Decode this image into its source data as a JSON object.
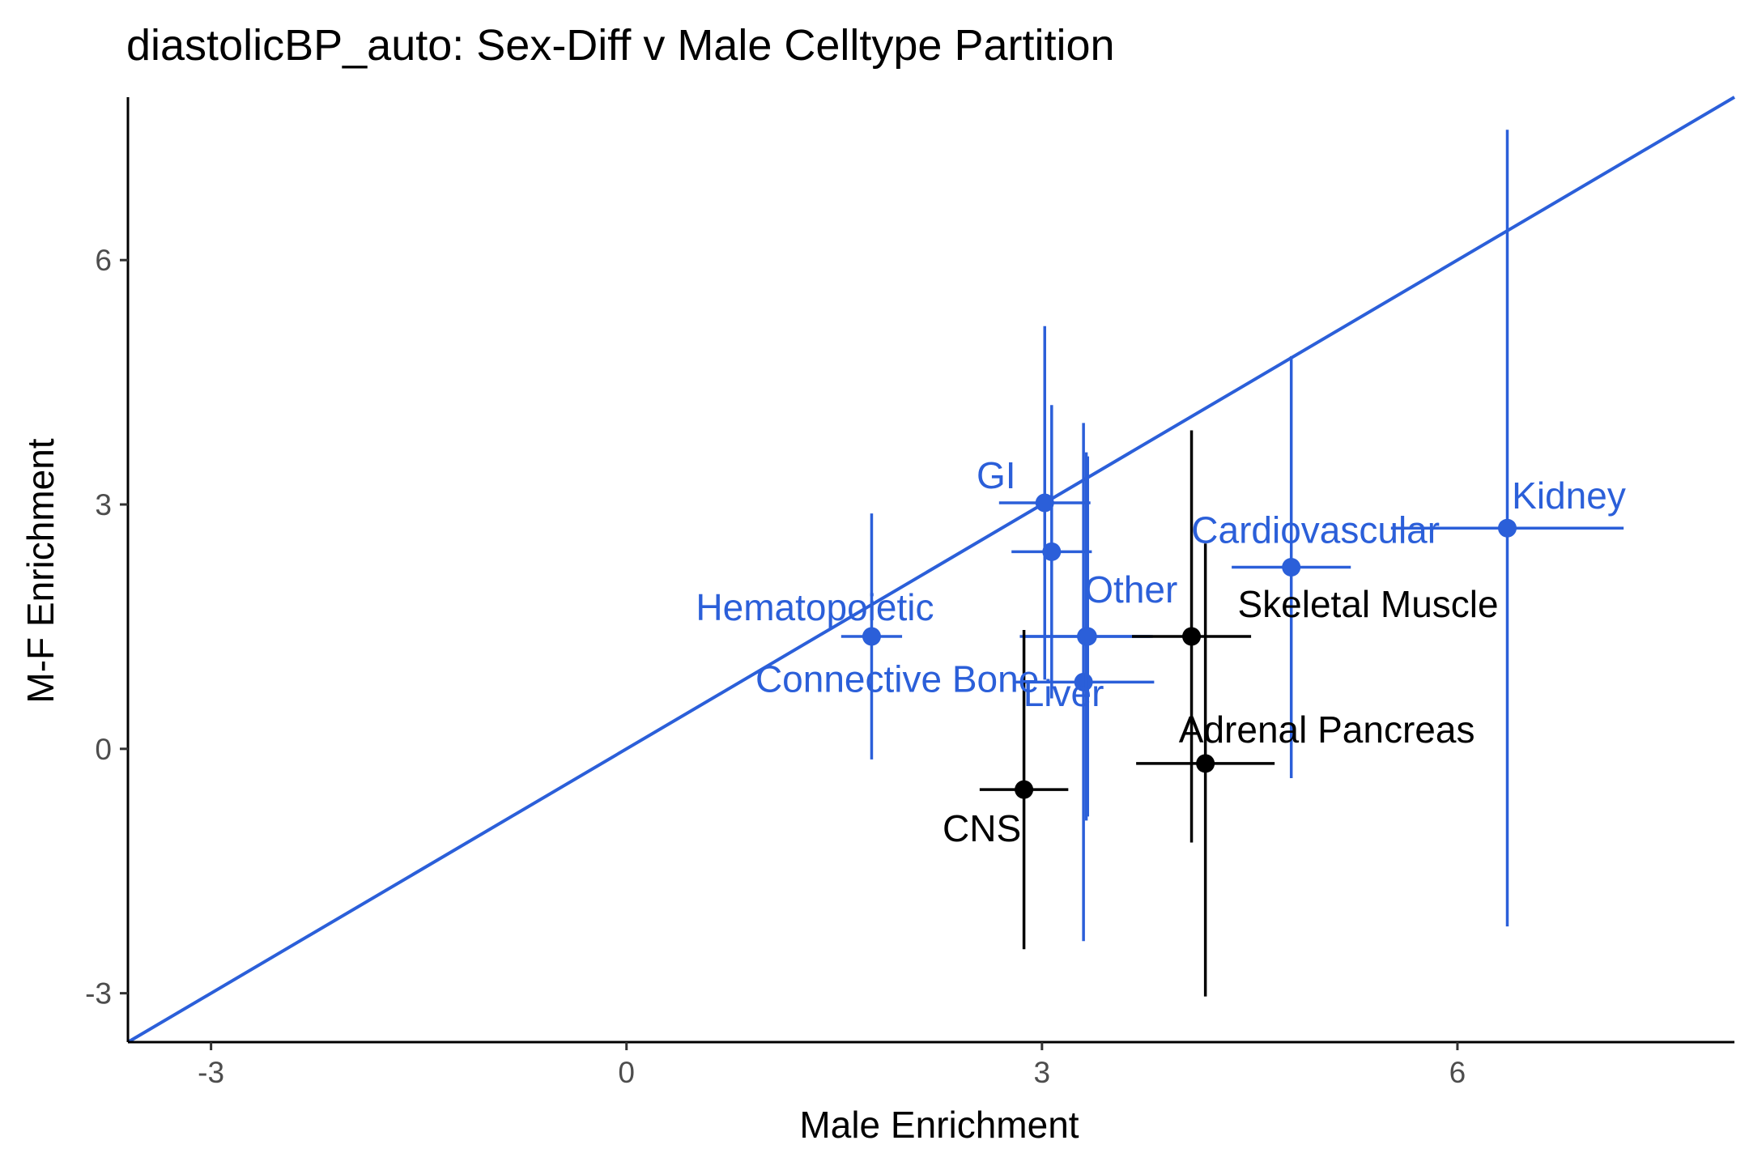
{
  "chart_data": {
    "type": "scatter",
    "title": "diastolicBP_auto: Sex-Diff v Male Celltype Partition",
    "xlabel": "Male Enrichment",
    "ylabel": "M-F Enrichment",
    "xlim": [
      -3.6,
      8.0
    ],
    "ylim": [
      -3.6,
      8.0
    ],
    "xticks": [
      -3,
      0,
      3,
      6
    ],
    "yticks": [
      -3,
      0,
      3,
      6
    ],
    "reference_line": {
      "slope": 1,
      "intercept": 0,
      "color": "#2b5fd9"
    },
    "colors": {
      "highlight": "#2b5fd9",
      "normal": "#000000"
    },
    "points": [
      {
        "label": "Hematopoietic",
        "x": 1.77,
        "y": 1.38,
        "xmin": 1.55,
        "xmax": 1.99,
        "ymin": -0.13,
        "ymax": 2.89,
        "highlight": true
      },
      {
        "label": "GI",
        "x": 3.02,
        "y": 3.02,
        "xmin": 2.69,
        "xmax": 3.35,
        "ymin": 0.85,
        "ymax": 5.19,
        "highlight": true
      },
      {
        "label": "",
        "x": 3.07,
        "y": 2.42,
        "xmin": 2.78,
        "xmax": 3.36,
        "ymin": 0.62,
        "ymax": 4.22,
        "highlight": true
      },
      {
        "label": "Other",
        "x": 3.33,
        "y": 1.38,
        "xmin": 2.88,
        "xmax": 3.78,
        "ymin": -0.83,
        "ymax": 3.59,
        "highlight": true
      },
      {
        "label": "Connective Bone",
        "x": 3.3,
        "y": 0.82,
        "xmin": 2.79,
        "xmax": 3.81,
        "ymin": -2.36,
        "ymax": 4.0,
        "highlight": true
      },
      {
        "label": "Liver",
        "x": 3.32,
        "y": 1.38,
        "xmin": 2.84,
        "xmax": 3.8,
        "ymin": -0.88,
        "ymax": 3.64,
        "highlight": true
      },
      {
        "label": "Cardiovascular",
        "x": 4.8,
        "y": 2.23,
        "xmin": 4.37,
        "xmax": 5.23,
        "ymin": -0.36,
        "ymax": 4.82,
        "highlight": true
      },
      {
        "label": "Kidney",
        "x": 6.36,
        "y": 2.71,
        "xmin": 5.52,
        "xmax": 7.2,
        "ymin": -2.18,
        "ymax": 7.6,
        "highlight": true
      },
      {
        "label": "CNS",
        "x": 2.87,
        "y": -0.5,
        "xmin": 2.55,
        "xmax": 3.19,
        "ymin": -2.46,
        "ymax": 1.46,
        "highlight": false
      },
      {
        "label": "Skeletal Muscle",
        "x": 4.08,
        "y": 1.38,
        "xmin": 3.65,
        "xmax": 4.51,
        "ymin": -1.15,
        "ymax": 3.91,
        "highlight": false
      },
      {
        "label": "Adrenal Pancreas",
        "x": 4.18,
        "y": -0.18,
        "xmin": 3.68,
        "xmax": 4.68,
        "ymin": -3.04,
        "ymax": 2.52,
        "highlight": false
      }
    ]
  }
}
